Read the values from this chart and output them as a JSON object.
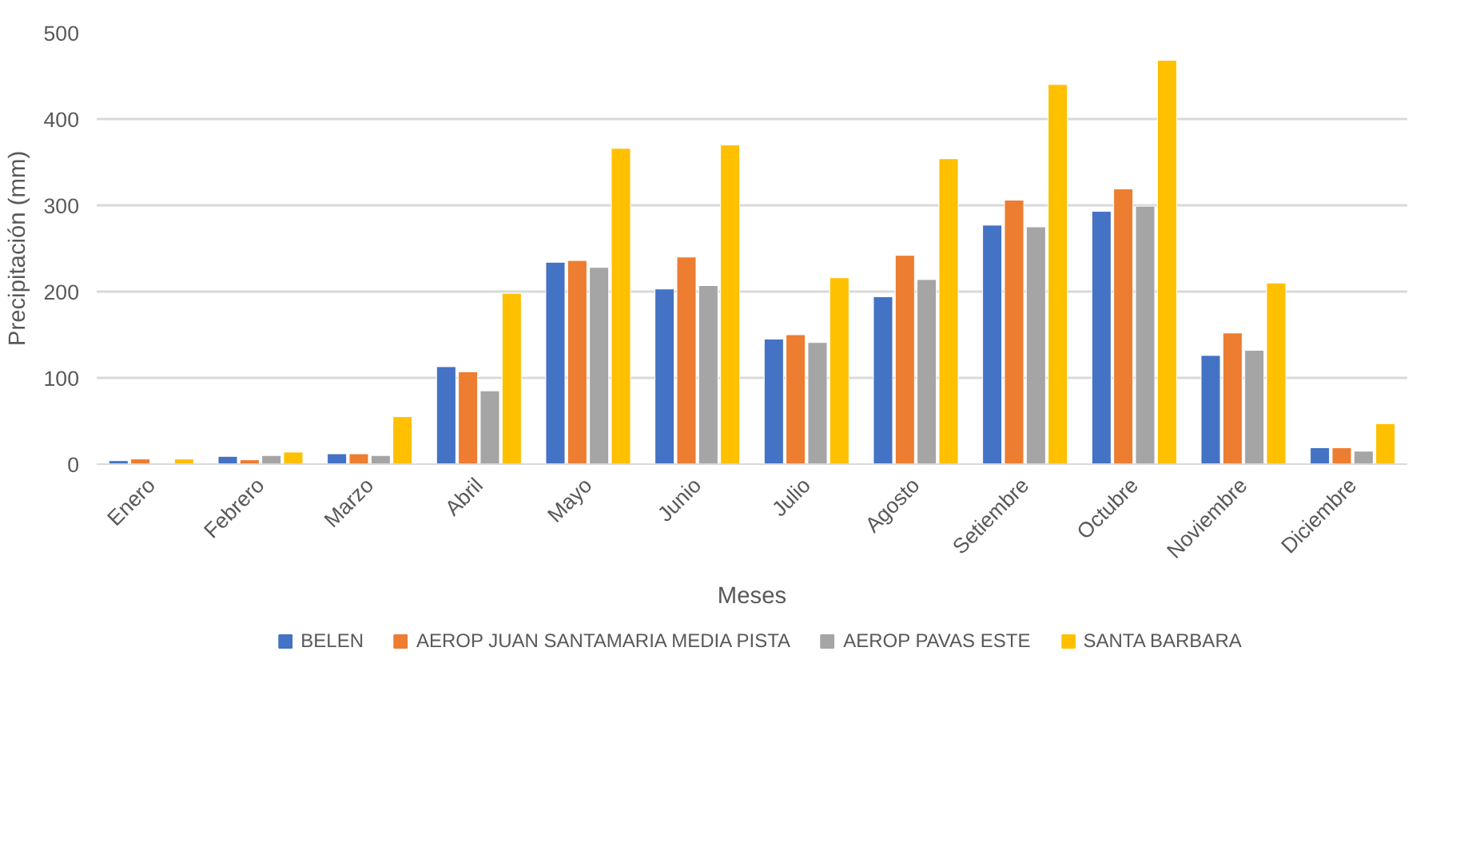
{
  "chart_data": {
    "type": "bar",
    "xlabel": "Meses",
    "ylabel": "Precipitación (mm)",
    "categories": [
      "Enero",
      "Febrero",
      "Marzo",
      "Abril",
      "Mayo",
      "Junio",
      "Julio",
      "Agosto",
      "Setiembre",
      "Octubre",
      "Noviembre",
      "Diciembre"
    ],
    "series": [
      {
        "name": "BELEN",
        "color": "#4472c4",
        "values": [
          4,
          9,
          12,
          113,
          234,
          203,
          145,
          194,
          277,
          293,
          126,
          19
        ]
      },
      {
        "name": "AEROP JUAN SANTAMARIA MEDIA PISTA",
        "color": "#ed7d31",
        "values": [
          6,
          5,
          12,
          107,
          236,
          240,
          150,
          242,
          306,
          319,
          152,
          19
        ]
      },
      {
        "name": "AEROP PAVAS ESTE",
        "color": "#a5a5a5",
        "values": [
          null,
          10,
          10,
          85,
          228,
          207,
          141,
          214,
          275,
          299,
          132,
          15
        ]
      },
      {
        "name": "SANTA BARBARA",
        "color": "#ffc000",
        "values": [
          6,
          14,
          55,
          198,
          366,
          370,
          216,
          354,
          440,
          468,
          210,
          47
        ]
      }
    ],
    "ylim": [
      0,
      500
    ],
    "yticks": [
      0,
      100,
      200,
      300,
      400,
      500
    ],
    "grid": "y",
    "legend": "bottom"
  }
}
